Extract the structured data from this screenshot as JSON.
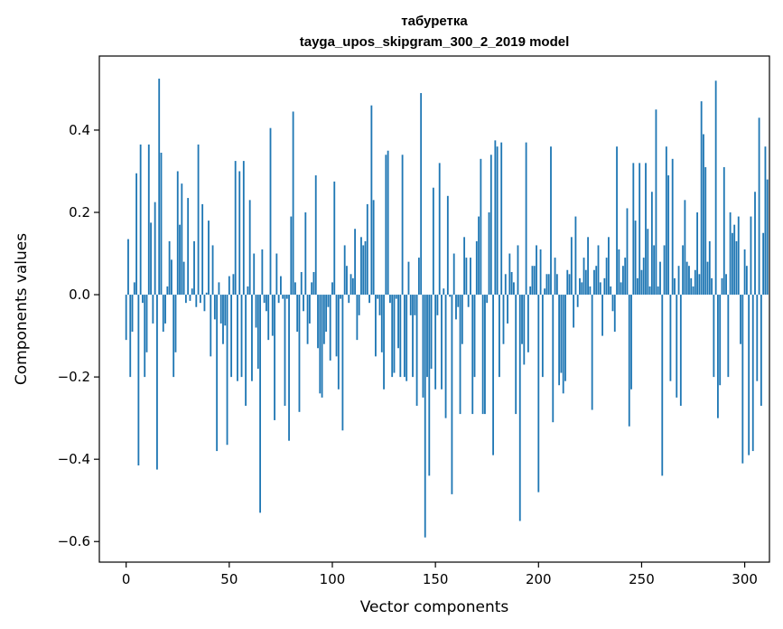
{
  "chart_data": {
    "type": "bar",
    "title": "табуретка",
    "subtitle": "tayga_upos_skipgram_300_2_2019 model",
    "xlabel": "Vector components",
    "ylabel": "Components values",
    "xlim": [
      -13,
      312
    ],
    "ylim": [
      -0.65,
      0.58
    ],
    "xticks": [
      0,
      50,
      100,
      150,
      200,
      250,
      300
    ],
    "xtick_labels": [
      "0",
      "50",
      "100",
      "150",
      "200",
      "250",
      "300"
    ],
    "yticks": [
      0.4,
      0.2,
      0.0,
      -0.2,
      -0.4,
      -0.6
    ],
    "ytick_labels": [
      "0.4",
      "0.2",
      "0.0",
      "−0.2",
      "−0.4",
      "−0.6"
    ],
    "grid": false,
    "bar_color": "#1f77b4",
    "series": [
      {
        "values": [
          -0.11,
          0.135,
          -0.2,
          -0.09,
          0.03,
          0.295,
          -0.415,
          0.365,
          -0.02,
          -0.2,
          -0.14,
          0.365,
          0.175,
          -0.07,
          0.225,
          -0.425,
          0.525,
          0.345,
          -0.09,
          -0.07,
          0.02,
          0.13,
          0.085,
          -0.2,
          -0.14,
          0.3,
          0.17,
          0.27,
          0.08,
          -0.02,
          0.235,
          -0.015,
          0.015,
          0.13,
          -0.03,
          0.365,
          -0.02,
          0.22,
          -0.04,
          0.005,
          0.18,
          -0.15,
          0.12,
          -0.06,
          -0.38,
          0.03,
          -0.07,
          -0.12,
          -0.075,
          -0.365,
          0.045,
          -0.2,
          0.05,
          0.325,
          -0.21,
          0.3,
          -0.2,
          0.325,
          -0.27,
          0.02,
          0.23,
          -0.21,
          0.1,
          -0.08,
          -0.18,
          -0.53,
          0.11,
          -0.02,
          -0.04,
          -0.11,
          0.405,
          -0.1,
          -0.305,
          0.1,
          -0.02,
          0.045,
          -0.01,
          -0.27,
          -0.01,
          -0.355,
          0.19,
          0.445,
          0.03,
          -0.09,
          -0.285,
          0.055,
          -0.04,
          0.2,
          -0.12,
          -0.07,
          0.03,
          0.055,
          0.29,
          -0.13,
          -0.24,
          -0.25,
          -0.12,
          -0.09,
          -0.03,
          -0.16,
          0.03,
          0.275,
          -0.15,
          -0.23,
          -0.01,
          -0.33,
          0.12,
          0.07,
          -0.02,
          0.05,
          0.04,
          0.16,
          -0.11,
          -0.05,
          0.14,
          0.12,
          0.13,
          0.22,
          -0.02,
          0.46,
          0.23,
          -0.15,
          -0.01,
          -0.05,
          -0.14,
          -0.23,
          0.34,
          0.35,
          -0.02,
          -0.2,
          -0.19,
          -0.01,
          -0.13,
          -0.2,
          0.34,
          -0.2,
          -0.21,
          0.08,
          -0.05,
          -0.2,
          -0.05,
          -0.27,
          0.09,
          0.49,
          -0.25,
          -0.59,
          -0.2,
          -0.44,
          -0.18,
          0.26,
          -0.23,
          -0.05,
          0.32,
          -0.23,
          0.015,
          -0.3,
          0.24,
          -0.005,
          -0.485,
          0.1,
          -0.06,
          -0.03,
          -0.29,
          -0.12,
          0.14,
          0.09,
          -0.03,
          0.09,
          -0.29,
          -0.2,
          0.13,
          0.19,
          0.33,
          -0.29,
          -0.29,
          -0.02,
          0.2,
          0.34,
          -0.39,
          0.375,
          0.36,
          -0.2,
          0.37,
          -0.12,
          0.05,
          -0.07,
          0.1,
          0.055,
          0.03,
          -0.29,
          0.12,
          -0.55,
          -0.12,
          -0.17,
          0.37,
          -0.14,
          0.02,
          0.07,
          0.07,
          0.12,
          -0.48,
          0.11,
          -0.2,
          0.015,
          0.05,
          0.05,
          0.36,
          -0.31,
          0.09,
          0.05,
          -0.22,
          -0.19,
          -0.24,
          -0.21,
          0.06,
          0.05,
          0.14,
          -0.08,
          0.19,
          -0.03,
          0.04,
          0.03,
          0.09,
          0.06,
          0.14,
          0.02,
          -0.28,
          0.06,
          0.07,
          0.12,
          0.03,
          -0.1,
          0.04,
          0.09,
          0.14,
          0.02,
          -0.04,
          -0.09,
          0.36,
          0.11,
          0.03,
          0.07,
          0.09,
          0.21,
          -0.32,
          -0.23,
          0.32,
          0.18,
          0.04,
          0.32,
          0.06,
          0.09,
          0.32,
          0.16,
          0.02,
          0.25,
          0.12,
          0.45,
          0.02,
          0.08,
          -0.44,
          0.12,
          0.36,
          0.29,
          -0.21,
          0.33,
          0.04,
          -0.25,
          0.07,
          -0.27,
          0.12,
          0.23,
          0.08,
          0.07,
          0.04,
          0.02,
          0.06,
          0.2,
          0.05,
          0.47,
          0.39,
          0.31,
          0.08,
          0.13,
          0.04,
          -0.2,
          0.52,
          -0.3,
          -0.22,
          0.04,
          0.31,
          0.05,
          -0.2,
          0.2,
          0.15,
          0.17,
          0.13,
          0.19,
          -0.12,
          -0.41,
          0.11,
          0.07,
          -0.39,
          0.19,
          -0.38,
          0.25,
          -0.21,
          0.43,
          -0.27,
          0.15,
          0.36,
          0.28
        ]
      }
    ]
  }
}
